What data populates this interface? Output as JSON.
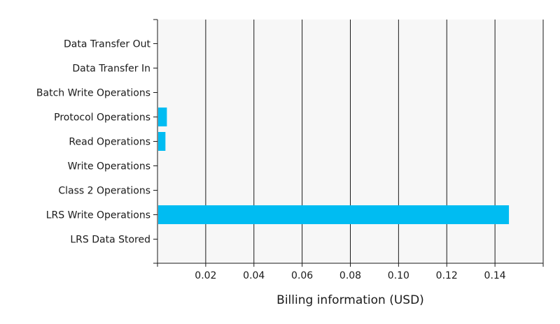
{
  "chart_data": {
    "type": "bar",
    "orientation": "horizontal",
    "categories": [
      "Data Transfer Out",
      "Data Transfer In",
      "Batch Write Operations",
      "Protocol Operations",
      "Read Operations",
      "Write Operations",
      "Class 2 Operations",
      "LRS Write Operations",
      "LRS Data Stored"
    ],
    "values": [
      0,
      0,
      0,
      0.0036,
      0.003,
      0,
      0,
      0.1455,
      0
    ],
    "xlabel": "Billing information (USD)",
    "ylabel": "",
    "xlim": [
      0,
      0.16
    ],
    "xticks": [
      0.02,
      0.04,
      0.06,
      0.08,
      0.1,
      0.12,
      0.14
    ],
    "xtick_labels": [
      "0.02",
      "0.04",
      "0.06",
      "0.08",
      "0.10",
      "0.12",
      "0.14"
    ],
    "grid": true,
    "legend": "none",
    "bar_color": "#00bcf2",
    "plot_background": "#f7f7f7"
  }
}
